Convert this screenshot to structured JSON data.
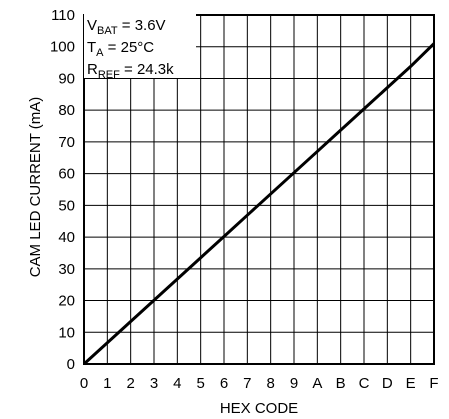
{
  "chart_data": {
    "type": "line",
    "categories": [
      "0",
      "1",
      "2",
      "3",
      "4",
      "5",
      "6",
      "7",
      "8",
      "9",
      "A",
      "B",
      "C",
      "D",
      "E",
      "F"
    ],
    "series": [
      {
        "values": [
          0,
          6.7,
          13.4,
          20.1,
          26.8,
          33.5,
          40.2,
          46.9,
          53.6,
          60.3,
          67.0,
          73.7,
          80.4,
          87.1,
          93.8,
          101.0
        ]
      }
    ],
    "xlabel": "HEX CODE",
    "ylabel": "CAM LED CURRENT (mA)",
    "ylim": [
      0,
      110
    ],
    "yticks": [
      "0",
      "10",
      "20",
      "30",
      "40",
      "50",
      "60",
      "70",
      "80",
      "90",
      "100",
      "110"
    ],
    "grid": true,
    "annotation": {
      "vbat": {
        "main": "V",
        "sub": "BAT",
        "rest": " = 3.6V"
      },
      "ta": {
        "main": "T",
        "sub": "A",
        "rest": " = 25°C"
      },
      "rref": {
        "main": "R",
        "sub": "REF",
        "rest": " = 24.3k"
      }
    },
    "colors": {
      "line": "#000000",
      "grid": "#000000"
    }
  }
}
